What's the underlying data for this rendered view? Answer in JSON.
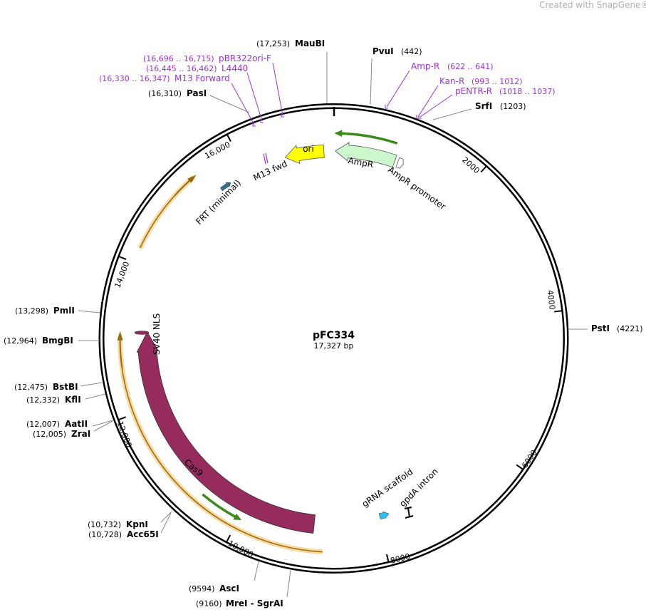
{
  "watermark": "Created with SnapGene®",
  "map": {
    "name": "pFC334",
    "size": "17,327 bp"
  },
  "enzymes": [
    {
      "name": "MauBI",
      "pos": "(17,253)"
    },
    {
      "name": "PvuI",
      "pos": "(442)"
    },
    {
      "name": "SrfI",
      "pos": "(1203)"
    },
    {
      "name": "PstI",
      "pos": "(4221)"
    },
    {
      "name": "AscI",
      "pos": "(9594)"
    },
    {
      "name": "MreI  - SgrAI",
      "pos": "(9160)"
    },
    {
      "name": "KpnI",
      "pos": "(10,732)"
    },
    {
      "name": "Acc65I",
      "pos": "(10,728)"
    },
    {
      "name": "AatII",
      "pos": "(12,007)"
    },
    {
      "name": "ZraI",
      "pos": "(12,005)"
    },
    {
      "name": "KflI",
      "pos": "(12,332)"
    },
    {
      "name": "BstBI",
      "pos": "(12,475)"
    },
    {
      "name": "BmgBI",
      "pos": "(12,964)"
    },
    {
      "name": "PmlI",
      "pos": "(13,298)"
    },
    {
      "name": "PasI",
      "pos": "(16,310)"
    }
  ],
  "primers": [
    {
      "name": "pBR322ori-F",
      "pos": "(16,696 .. 16,715)"
    },
    {
      "name": "L4440",
      "pos": "(16,445 .. 16,462)"
    },
    {
      "name": "M13 Forward",
      "pos": "(16,330 .. 16,347)"
    },
    {
      "name": "Amp-R",
      "pos": "(622 .. 641)"
    },
    {
      "name": "Kan-R",
      "pos": "(993 .. 1012)"
    },
    {
      "name": "pENTR-R",
      "pos": "(1018 .. 1037)"
    }
  ],
  "features": [
    "ori",
    "AmpR",
    "AmpR promoter",
    "M13 fwd",
    "FRT (minimal)",
    "SV40 NLS",
    "Cas9",
    "gRNA scaffold",
    "gpdA intron"
  ],
  "ticks": [
    "2000",
    "4000",
    "6000",
    "8000",
    "10,000",
    "12,000",
    "14,000",
    "16,000"
  ]
}
